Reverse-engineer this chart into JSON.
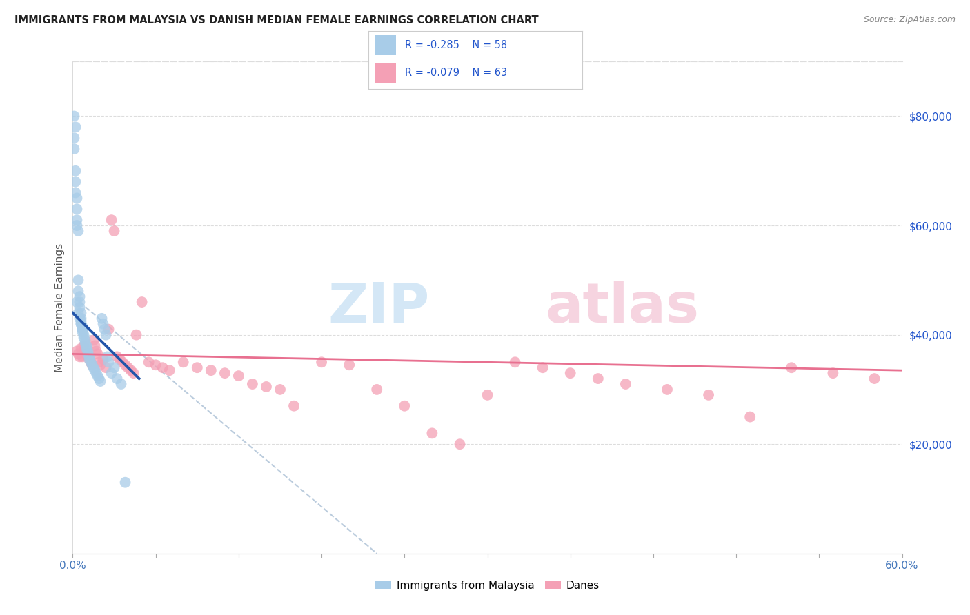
{
  "title": "IMMIGRANTS FROM MALAYSIA VS DANISH MEDIAN FEMALE EARNINGS CORRELATION CHART",
  "source": "Source: ZipAtlas.com",
  "ylabel": "Median Female Earnings",
  "xlim": [
    0.0,
    0.6
  ],
  "ylim": [
    0,
    90000
  ],
  "y_ticks_right": [
    20000,
    40000,
    60000,
    80000
  ],
  "y_tick_labels_right": [
    "$20,000",
    "$40,000",
    "$60,000",
    "$80,000"
  ],
  "color_blue": "#a8cce8",
  "color_pink": "#f4a0b5",
  "color_line_blue": "#2255aa",
  "color_line_pink": "#e87090",
  "color_line_dashed": "#bbccdd",
  "color_text_blue": "#2255cc",
  "legend_bottom": [
    "Immigrants from Malaysia",
    "Danes"
  ],
  "blue_scatter_x": [
    0.001,
    0.001,
    0.002,
    0.002,
    0.002,
    0.003,
    0.003,
    0.003,
    0.003,
    0.004,
    0.004,
    0.004,
    0.005,
    0.005,
    0.005,
    0.006,
    0.006,
    0.006,
    0.006,
    0.007,
    0.007,
    0.007,
    0.008,
    0.008,
    0.009,
    0.009,
    0.01,
    0.01,
    0.011,
    0.011,
    0.012,
    0.012,
    0.013,
    0.014,
    0.015,
    0.016,
    0.017,
    0.018,
    0.019,
    0.02,
    0.021,
    0.022,
    0.023,
    0.024,
    0.025,
    0.026,
    0.028,
    0.03,
    0.032,
    0.035,
    0.003,
    0.004,
    0.001,
    0.002,
    0.005,
    0.006,
    0.007,
    0.038
  ],
  "blue_scatter_y": [
    76000,
    74000,
    70000,
    68000,
    66000,
    65000,
    63000,
    61000,
    60000,
    59000,
    50000,
    48000,
    47000,
    46000,
    45000,
    44000,
    43000,
    42500,
    42000,
    41500,
    41000,
    40500,
    40000,
    39500,
    39000,
    38500,
    38000,
    37500,
    37000,
    36500,
    36000,
    35500,
    35000,
    34500,
    34000,
    33500,
    33000,
    32500,
    32000,
    31500,
    43000,
    42000,
    41000,
    40000,
    36000,
    35000,
    33000,
    34000,
    32000,
    31000,
    46000,
    44000,
    80000,
    78000,
    43000,
    42000,
    41000,
    13000
  ],
  "pink_scatter_x": [
    0.003,
    0.004,
    0.005,
    0.006,
    0.007,
    0.008,
    0.009,
    0.01,
    0.011,
    0.012,
    0.013,
    0.014,
    0.015,
    0.016,
    0.017,
    0.018,
    0.019,
    0.02,
    0.022,
    0.024,
    0.026,
    0.028,
    0.03,
    0.032,
    0.034,
    0.036,
    0.038,
    0.04,
    0.042,
    0.044,
    0.046,
    0.05,
    0.055,
    0.06,
    0.065,
    0.07,
    0.08,
    0.09,
    0.1,
    0.11,
    0.12,
    0.13,
    0.14,
    0.15,
    0.16,
    0.18,
    0.2,
    0.22,
    0.24,
    0.26,
    0.28,
    0.3,
    0.32,
    0.34,
    0.36,
    0.38,
    0.4,
    0.43,
    0.46,
    0.49,
    0.52,
    0.55,
    0.58
  ],
  "pink_scatter_y": [
    37000,
    36500,
    36000,
    37500,
    36000,
    38000,
    37000,
    36500,
    36000,
    35500,
    35000,
    34500,
    39000,
    38000,
    37000,
    36500,
    35000,
    34500,
    35500,
    34000,
    41000,
    61000,
    59000,
    36000,
    35500,
    35000,
    34500,
    34000,
    33500,
    33000,
    40000,
    46000,
    35000,
    34500,
    34000,
    33500,
    35000,
    34000,
    33500,
    33000,
    32500,
    31000,
    30500,
    30000,
    27000,
    35000,
    34500,
    30000,
    27000,
    22000,
    20000,
    29000,
    35000,
    34000,
    33000,
    32000,
    31000,
    30000,
    29000,
    25000,
    34000,
    33000,
    32000
  ],
  "blue_line_x": [
    0.0,
    0.048
  ],
  "blue_line_y": [
    44000,
    32000
  ],
  "pink_line_x": [
    0.0,
    0.6
  ],
  "pink_line_y": [
    36500,
    33500
  ],
  "dashed_line_x": [
    0.005,
    0.22
  ],
  "dashed_line_y": [
    46000,
    0
  ],
  "background_color": "#ffffff",
  "grid_color": "#dddddd"
}
